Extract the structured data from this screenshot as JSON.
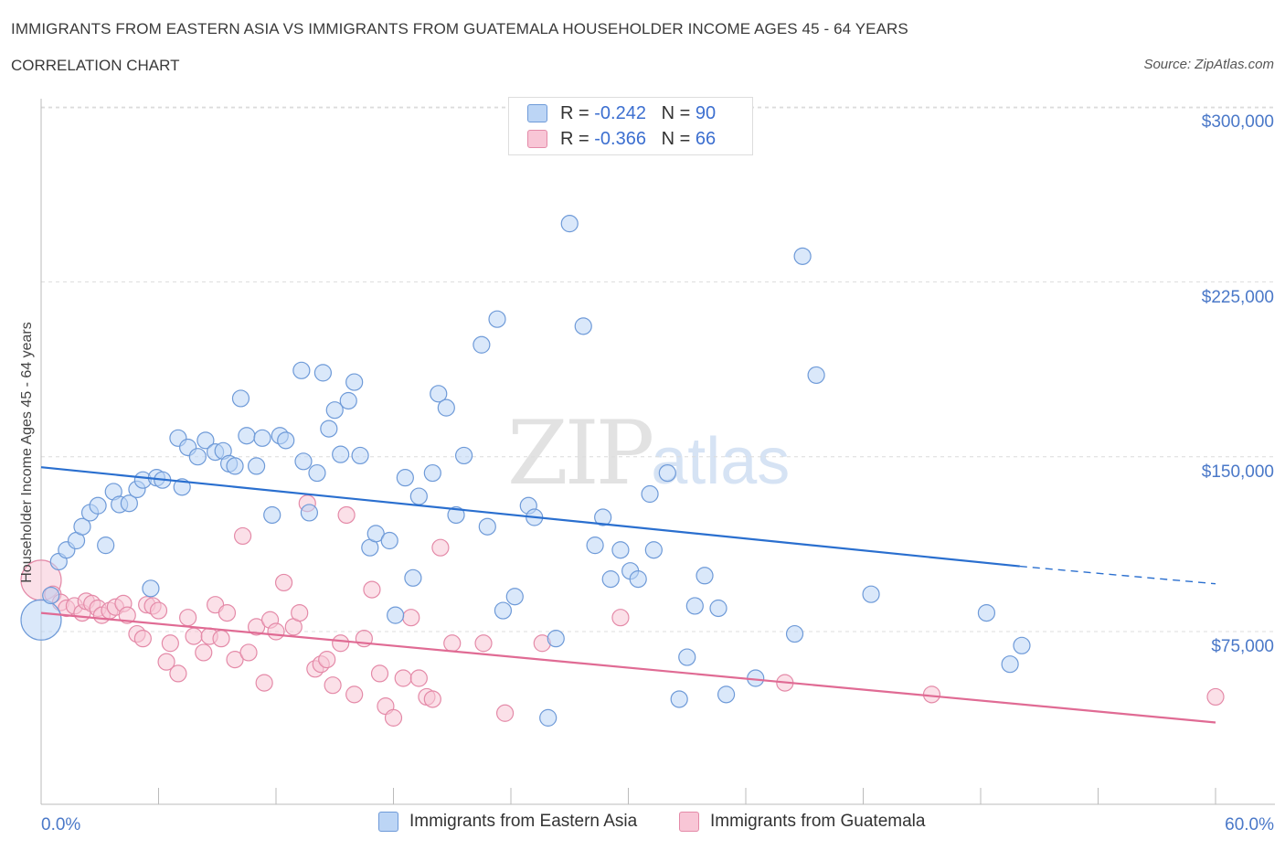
{
  "title": "IMMIGRANTS FROM EASTERN ASIA VS IMMIGRANTS FROM GUATEMALA HOUSEHOLDER INCOME AGES 45 - 64 YEARS",
  "subtitle": "CORRELATION CHART",
  "source": "Source: ZipAtlas.com",
  "watermark": {
    "main": "ZIP",
    "accent": "atlas"
  },
  "legend": {
    "rows": [
      {
        "r_label": "R =",
        "r_value": "-0.242",
        "n_label": "N =",
        "n_value": "90"
      },
      {
        "r_label": "R =",
        "r_value": "-0.366",
        "n_label": "N =",
        "n_value": "66"
      }
    ]
  },
  "colors": {
    "blue_fill": "#bcd5f5",
    "blue_stroke": "#6e9ad8",
    "blue_line": "#2a6fcf",
    "pink_fill": "#f8c6d6",
    "pink_stroke": "#e48aa8",
    "pink_line": "#e06b94",
    "axis_text": "#4a78c8"
  },
  "chart_data": {
    "type": "scatter",
    "title": "IMMIGRANTS FROM EASTERN ASIA VS IMMIGRANTS FROM GUATEMALA HOUSEHOLDER INCOME AGES 45 - 64 YEARS",
    "ylabel": "Householder Income Ages 45 - 64 years",
    "xlabel": "",
    "x_tick_labels": [
      "0.0%",
      "60.0%"
    ],
    "y_tick_labels": [
      "$75,000",
      "$150,000",
      "$225,000",
      "$300,000"
    ],
    "y_ticks": [
      75000,
      150000,
      225000,
      300000
    ],
    "xlim": [
      0,
      60
    ],
    "ylim": [
      0,
      300000
    ],
    "grid": true,
    "legend_position": "top-center",
    "series": [
      {
        "name": "Immigrants from Eastern Asia",
        "color": "#6e9ad8",
        "trend": {
          "x": [
            0,
            50
          ],
          "y": [
            145500,
            103000
          ],
          "dashed_to": [
            60,
            95500
          ]
        },
        "points": [
          [
            0.0,
            80000
          ],
          [
            0.5,
            90500
          ],
          [
            0.9,
            105000
          ],
          [
            1.3,
            110000
          ],
          [
            1.8,
            114000
          ],
          [
            2.1,
            120000
          ],
          [
            2.5,
            126000
          ],
          [
            2.9,
            129000
          ],
          [
            3.3,
            112000
          ],
          [
            3.7,
            135000
          ],
          [
            4.0,
            129500
          ],
          [
            4.5,
            130000
          ],
          [
            4.9,
            136000
          ],
          [
            5.2,
            140000
          ],
          [
            5.6,
            93500
          ],
          [
            5.9,
            141000
          ],
          [
            6.2,
            140000
          ],
          [
            7.0,
            158000
          ],
          [
            7.2,
            137000
          ],
          [
            7.5,
            154000
          ],
          [
            8.0,
            150000
          ],
          [
            8.4,
            157000
          ],
          [
            8.9,
            152000
          ],
          [
            9.3,
            152500
          ],
          [
            9.6,
            147000
          ],
          [
            9.9,
            146000
          ],
          [
            10.2,
            175000
          ],
          [
            10.5,
            159000
          ],
          [
            11.0,
            146000
          ],
          [
            11.3,
            158000
          ],
          [
            11.8,
            125000
          ],
          [
            12.2,
            159000
          ],
          [
            12.5,
            157000
          ],
          [
            13.3,
            187000
          ],
          [
            13.4,
            148000
          ],
          [
            13.7,
            126000
          ],
          [
            14.1,
            143000
          ],
          [
            14.4,
            186000
          ],
          [
            14.7,
            162000
          ],
          [
            15.0,
            170000
          ],
          [
            15.3,
            151000
          ],
          [
            15.7,
            174000
          ],
          [
            16.0,
            182000
          ],
          [
            16.3,
            150500
          ],
          [
            16.8,
            111000
          ],
          [
            17.1,
            117000
          ],
          [
            17.8,
            114000
          ],
          [
            18.1,
            82000
          ],
          [
            18.6,
            141000
          ],
          [
            19.0,
            98000
          ],
          [
            19.3,
            133000
          ],
          [
            20.0,
            143000
          ],
          [
            20.3,
            177000
          ],
          [
            20.7,
            171000
          ],
          [
            21.2,
            125000
          ],
          [
            21.6,
            150500
          ],
          [
            22.5,
            198000
          ],
          [
            22.8,
            120000
          ],
          [
            23.3,
            209000
          ],
          [
            23.6,
            84000
          ],
          [
            24.2,
            90000
          ],
          [
            24.9,
            129000
          ],
          [
            25.2,
            124000
          ],
          [
            25.9,
            38000
          ],
          [
            26.3,
            72000
          ],
          [
            27.0,
            250000
          ],
          [
            27.7,
            206000
          ],
          [
            28.3,
            112000
          ],
          [
            28.7,
            124000
          ],
          [
            29.1,
            97500
          ],
          [
            29.6,
            110000
          ],
          [
            30.1,
            101000
          ],
          [
            30.5,
            97500
          ],
          [
            31.1,
            134000
          ],
          [
            31.3,
            110000
          ],
          [
            32.0,
            143000
          ],
          [
            32.6,
            46000
          ],
          [
            33.0,
            64000
          ],
          [
            33.4,
            86000
          ],
          [
            33.9,
            99000
          ],
          [
            34.6,
            85000
          ],
          [
            35.0,
            48000
          ],
          [
            36.5,
            55000
          ],
          [
            38.5,
            74000
          ],
          [
            38.9,
            236000
          ],
          [
            39.6,
            185000
          ],
          [
            42.4,
            91000
          ],
          [
            48.3,
            83000
          ],
          [
            49.5,
            61000
          ],
          [
            50.1,
            69000
          ]
        ]
      },
      {
        "name": "Immigrants from Guatemala",
        "color": "#e48aa8",
        "trend": {
          "x": [
            0,
            60
          ],
          "y": [
            83000,
            36000
          ]
        },
        "points": [
          [
            0.0,
            97000
          ],
          [
            0.6,
            91000
          ],
          [
            1.0,
            87500
          ],
          [
            1.3,
            85000
          ],
          [
            1.7,
            86000
          ],
          [
            2.1,
            83000
          ],
          [
            2.3,
            88000
          ],
          [
            2.6,
            87000
          ],
          [
            2.9,
            85000
          ],
          [
            3.1,
            82000
          ],
          [
            3.5,
            84000
          ],
          [
            3.8,
            85500
          ],
          [
            4.2,
            87000
          ],
          [
            4.4,
            82000
          ],
          [
            4.9,
            74000
          ],
          [
            5.2,
            72000
          ],
          [
            5.4,
            86500
          ],
          [
            5.7,
            86000
          ],
          [
            6.0,
            84000
          ],
          [
            6.4,
            62000
          ],
          [
            6.6,
            70000
          ],
          [
            7.0,
            57000
          ],
          [
            7.5,
            81000
          ],
          [
            7.8,
            73000
          ],
          [
            8.3,
            66000
          ],
          [
            8.6,
            73000
          ],
          [
            8.9,
            86500
          ],
          [
            9.2,
            72000
          ],
          [
            9.5,
            83000
          ],
          [
            9.9,
            63000
          ],
          [
            10.3,
            116000
          ],
          [
            10.6,
            66000
          ],
          [
            11.0,
            77000
          ],
          [
            11.4,
            53000
          ],
          [
            11.7,
            80000
          ],
          [
            12.0,
            75000
          ],
          [
            12.4,
            96000
          ],
          [
            12.9,
            77000
          ],
          [
            13.2,
            83000
          ],
          [
            13.6,
            130000
          ],
          [
            14.0,
            59000
          ],
          [
            14.3,
            61000
          ],
          [
            14.6,
            63000
          ],
          [
            14.9,
            52000
          ],
          [
            15.3,
            70000
          ],
          [
            15.6,
            125000
          ],
          [
            16.0,
            48000
          ],
          [
            16.5,
            72000
          ],
          [
            16.9,
            93000
          ],
          [
            17.3,
            57000
          ],
          [
            17.6,
            43000
          ],
          [
            18.0,
            38000
          ],
          [
            18.5,
            55000
          ],
          [
            18.9,
            81000
          ],
          [
            19.3,
            55000
          ],
          [
            19.7,
            47000
          ],
          [
            20.0,
            46000
          ],
          [
            20.4,
            111000
          ],
          [
            21.0,
            70000
          ],
          [
            22.6,
            70000
          ],
          [
            23.7,
            40000
          ],
          [
            25.6,
            70000
          ],
          [
            29.6,
            81000
          ],
          [
            38.0,
            53000
          ],
          [
            45.5,
            48000
          ],
          [
            60.0,
            47000
          ]
        ]
      }
    ]
  }
}
